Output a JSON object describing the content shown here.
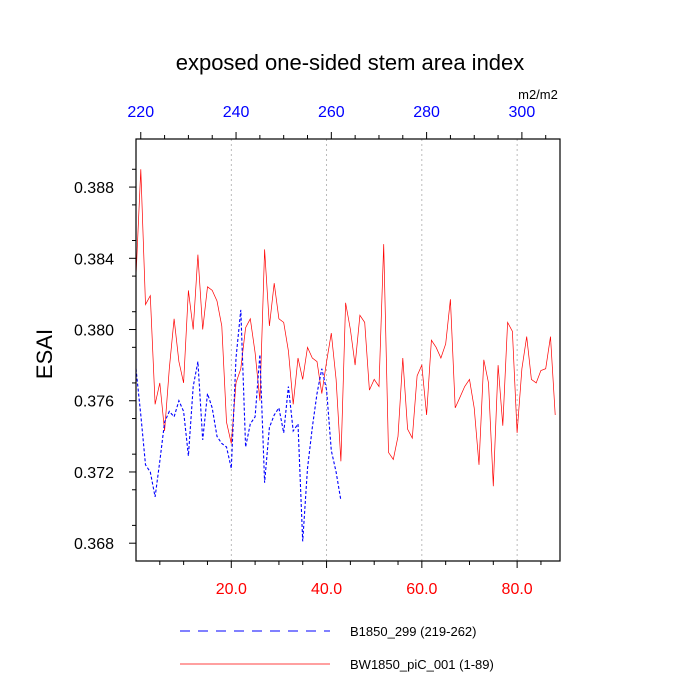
{
  "chart_data": {
    "type": "line",
    "title": "exposed one-sided stem area index",
    "ylabel": "ESAI",
    "units": "m2/m2",
    "xlim": [
      0,
      89
    ],
    "ylim": [
      0.367,
      0.3907
    ],
    "top_xlim": [
      219,
      308
    ],
    "bottom_ticks": [
      20,
      40,
      60,
      80
    ],
    "bottom_tick_labels": [
      "20.0",
      "40.0",
      "60.0",
      "80.0"
    ],
    "top_ticks": [
      220,
      240,
      260,
      280,
      300
    ],
    "top_tick_labels": [
      "220",
      "240",
      "260",
      "280",
      "300"
    ],
    "y_ticks": [
      0.368,
      0.372,
      0.376,
      0.38,
      0.384,
      0.388
    ],
    "y_tick_labels": [
      "0.368",
      "0.372",
      "0.376",
      "0.380",
      "0.384",
      "0.388"
    ],
    "grid_x": [
      20,
      40,
      60,
      80
    ],
    "legend_position": "bottom",
    "colors": {
      "red": "#ff0000",
      "blue": "#0000ff",
      "grid": "#aaaaaa",
      "axis": "#000000"
    },
    "series": [
      {
        "name": "B1850_299 (219-262)",
        "color": "#0000ff",
        "style": "dashed",
        "x": [
          0,
          1,
          2,
          3,
          4,
          5,
          6,
          7,
          8,
          9,
          10,
          11,
          12,
          13,
          14,
          15,
          16,
          17,
          18,
          19,
          20,
          21,
          22,
          23,
          24,
          25,
          26,
          27,
          28,
          29,
          30,
          31,
          32,
          33,
          34,
          35,
          36,
          37,
          38,
          39,
          40,
          41,
          42,
          43
        ],
        "y": [
          0.3778,
          0.3752,
          0.3724,
          0.372,
          0.3706,
          0.3726,
          0.3748,
          0.3754,
          0.3751,
          0.376,
          0.3754,
          0.3729,
          0.3768,
          0.3782,
          0.3738,
          0.3764,
          0.3756,
          0.374,
          0.3736,
          0.3734,
          0.3722,
          0.3784,
          0.3811,
          0.3734,
          0.3747,
          0.3751,
          0.3786,
          0.3714,
          0.3745,
          0.3752,
          0.3756,
          0.3742,
          0.3768,
          0.3743,
          0.3747,
          0.3681,
          0.3722,
          0.3745,
          0.3764,
          0.3778,
          0.3766,
          0.3732,
          0.372,
          0.3704
        ]
      },
      {
        "name": "BW1850_piC_001 (1-89)",
        "color": "#ff0000",
        "style": "solid",
        "x": [
          0,
          1,
          2,
          3,
          4,
          5,
          6,
          7,
          8,
          9,
          10,
          11,
          12,
          13,
          14,
          15,
          16,
          17,
          18,
          19,
          20,
          21,
          22,
          23,
          24,
          25,
          26,
          27,
          28,
          29,
          30,
          31,
          32,
          33,
          34,
          35,
          36,
          37,
          38,
          39,
          40,
          41,
          42,
          43,
          44,
          45,
          46,
          47,
          48,
          49,
          50,
          51,
          52,
          53,
          54,
          55,
          56,
          57,
          58,
          59,
          60,
          61,
          62,
          63,
          64,
          65,
          66,
          67,
          68,
          69,
          70,
          71,
          72,
          73,
          74,
          75,
          76,
          77,
          78,
          79,
          80,
          81,
          82,
          83,
          84,
          85,
          86,
          87,
          88
        ],
        "y": [
          0.383,
          0.389,
          0.3814,
          0.3819,
          0.3758,
          0.377,
          0.3743,
          0.3778,
          0.3806,
          0.3782,
          0.377,
          0.3822,
          0.38,
          0.3842,
          0.38,
          0.3824,
          0.3822,
          0.3816,
          0.3802,
          0.3748,
          0.3736,
          0.377,
          0.3778,
          0.3801,
          0.3806,
          0.3787,
          0.376,
          0.3845,
          0.3802,
          0.3826,
          0.3806,
          0.3804,
          0.3788,
          0.3758,
          0.3784,
          0.3772,
          0.379,
          0.3784,
          0.3782,
          0.3764,
          0.3782,
          0.3798,
          0.3772,
          0.3726,
          0.3815,
          0.38,
          0.378,
          0.3808,
          0.3804,
          0.3766,
          0.3772,
          0.3768,
          0.3848,
          0.3731,
          0.3727,
          0.374,
          0.3784,
          0.3744,
          0.3739,
          0.3774,
          0.378,
          0.3752,
          0.3794,
          0.379,
          0.3784,
          0.3792,
          0.3817,
          0.3756,
          0.3762,
          0.3768,
          0.3772,
          0.3756,
          0.3724,
          0.3783,
          0.377,
          0.3712,
          0.378,
          0.3746,
          0.3804,
          0.3799,
          0.3742,
          0.3778,
          0.3796,
          0.3772,
          0.377,
          0.3777,
          0.3778,
          0.3796,
          0.3752
        ]
      }
    ]
  }
}
